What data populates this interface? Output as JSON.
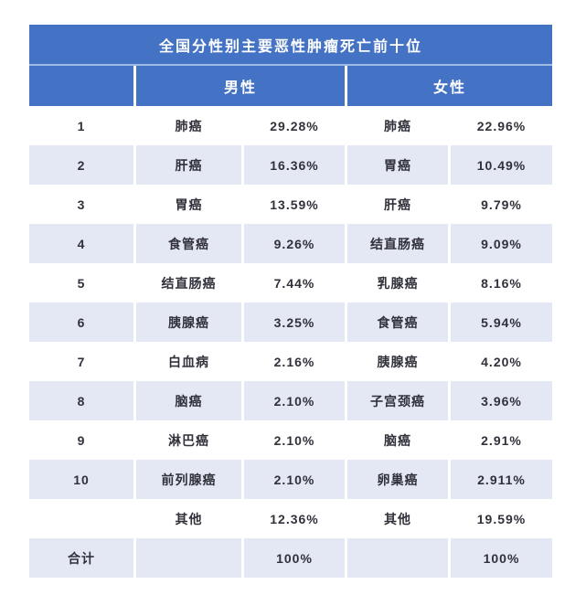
{
  "table": {
    "title": "全国分性别主要恶性肿瘤死亡前十位",
    "columns": {
      "male": "男性",
      "female": "女性"
    },
    "colors": {
      "header_blue": "#4472C4",
      "header_divider": "#9FBCE4",
      "row_shaded": "#E4E8F4",
      "text_dark": "#31313B",
      "header_text": "#FFFFFF"
    },
    "rows": [
      {
        "rank": "1",
        "male_name": "肺癌",
        "male_pct": "29.28%",
        "female_name": "肺癌",
        "female_pct": "22.96%",
        "shaded": false
      },
      {
        "rank": "2",
        "male_name": "肝癌",
        "male_pct": "16.36%",
        "female_name": "胃癌",
        "female_pct": "10.49%",
        "shaded": true
      },
      {
        "rank": "3",
        "male_name": "胃癌",
        "male_pct": "13.59%",
        "female_name": "肝癌",
        "female_pct": "9.79%",
        "shaded": false
      },
      {
        "rank": "4",
        "male_name": "食管癌",
        "male_pct": "9.26%",
        "female_name": "结直肠癌",
        "female_pct": "9.09%",
        "shaded": true
      },
      {
        "rank": "5",
        "male_name": "结直肠癌",
        "male_pct": "7.44%",
        "female_name": "乳腺癌",
        "female_pct": "8.16%",
        "shaded": false
      },
      {
        "rank": "6",
        "male_name": "胰腺癌",
        "male_pct": "3.25%",
        "female_name": "食管癌",
        "female_pct": "5.94%",
        "shaded": true
      },
      {
        "rank": "7",
        "male_name": "白血病",
        "male_pct": "2.16%",
        "female_name": "胰腺癌",
        "female_pct": "4.20%",
        "shaded": false
      },
      {
        "rank": "8",
        "male_name": "脑癌",
        "male_pct": "2.10%",
        "female_name": "子宫颈癌",
        "female_pct": "3.96%",
        "shaded": true
      },
      {
        "rank": "9",
        "male_name": "淋巴癌",
        "male_pct": "2.10%",
        "female_name": "脑癌",
        "female_pct": "2.91%",
        "shaded": false
      },
      {
        "rank": "10",
        "male_name": "前列腺癌",
        "male_pct": "2.10%",
        "female_name": "卵巢癌",
        "female_pct": "2.911%",
        "shaded": true
      },
      {
        "rank": "",
        "male_name": "其他",
        "male_pct": "12.36%",
        "female_name": "其他",
        "female_pct": "19.59%",
        "shaded": false
      },
      {
        "rank": "合计",
        "male_name": "",
        "male_pct": "100%",
        "female_name": "",
        "female_pct": "100%",
        "shaded": true
      }
    ]
  },
  "chart_data": {
    "type": "table",
    "title": "全国分性别主要恶性肿瘤死亡前十位",
    "groups": [
      "男性",
      "女性"
    ],
    "male_series": {
      "labels": [
        "肺癌",
        "肝癌",
        "胃癌",
        "食管癌",
        "结直肠癌",
        "胰腺癌",
        "白血病",
        "脑癌",
        "淋巴癌",
        "前列腺癌",
        "其他"
      ],
      "values_pct": [
        29.28,
        16.36,
        13.59,
        9.26,
        7.44,
        3.25,
        2.16,
        2.1,
        2.1,
        2.1,
        12.36
      ],
      "total_label": "合计",
      "total": "100%"
    },
    "female_series": {
      "labels": [
        "肺癌",
        "胃癌",
        "肝癌",
        "结直肠癌",
        "乳腺癌",
        "食管癌",
        "胰腺癌",
        "子宫颈癌",
        "脑癌",
        "卵巢癌",
        "其他"
      ],
      "values_pct": [
        22.96,
        10.49,
        9.79,
        9.09,
        8.16,
        5.94,
        4.2,
        3.96,
        2.91,
        2.911,
        19.59
      ],
      "total_label": "合计",
      "total": "100%"
    },
    "rows": [
      [
        "1",
        "肺癌",
        "29.28%",
        "肺癌",
        "22.96%"
      ],
      [
        "2",
        "肝癌",
        "16.36%",
        "胃癌",
        "10.49%"
      ],
      [
        "3",
        "胃癌",
        "13.59%",
        "肝癌",
        "9.79%"
      ],
      [
        "4",
        "食管癌",
        "9.26%",
        "结直肠癌",
        "9.09%"
      ],
      [
        "5",
        "结直肠癌",
        "7.44%",
        "乳腺癌",
        "8.16%"
      ],
      [
        "6",
        "胰腺癌",
        "3.25%",
        "食管癌",
        "5.94%"
      ],
      [
        "7",
        "白血病",
        "2.16%",
        "胰腺癌",
        "4.20%"
      ],
      [
        "8",
        "脑癌",
        "2.10%",
        "子宫颈癌",
        "3.96%"
      ],
      [
        "9",
        "淋巴癌",
        "2.10%",
        "脑癌",
        "2.91%"
      ],
      [
        "10",
        "前列腺癌",
        "2.10%",
        "卵巢癌",
        "2.911%"
      ],
      [
        "",
        "其他",
        "12.36%",
        "其他",
        "19.59%"
      ],
      [
        "合计",
        "",
        "100%",
        "",
        "100%"
      ]
    ]
  }
}
